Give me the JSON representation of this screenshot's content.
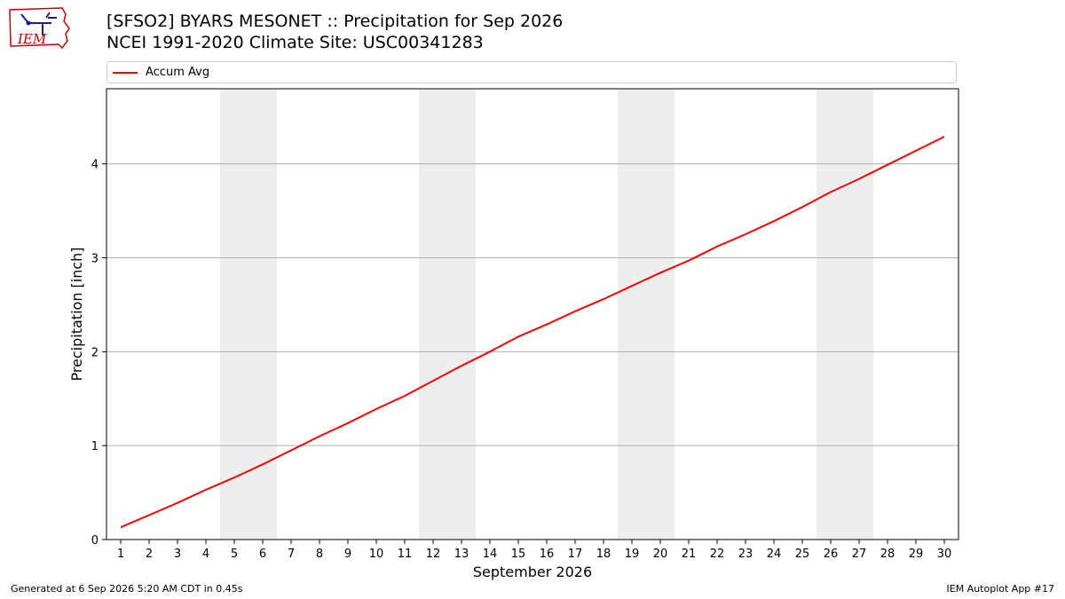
{
  "header": {
    "title_line1": "[SFSO2] BYARS MESONET :: Precipitation for Sep 2026",
    "title_line2": "NCEI 1991-2020 Climate Site: USC00341283"
  },
  "logo": {
    "text": "IEM"
  },
  "footer": {
    "generated": "Generated at 6 Sep 2026 5:20 AM CDT in 0.45s",
    "app": "IEM Autoplot App #17"
  },
  "colors": {
    "line": "#ff0000",
    "weekend_band": "#eeeeee",
    "grid": "#b0b0b0"
  },
  "chart_data": {
    "type": "line",
    "xlabel": "September 2026",
    "ylabel": "Precipitation [inch]",
    "xlim": [
      0.5,
      30.5
    ],
    "ylim": [
      0,
      4.8
    ],
    "x_ticks": [
      1,
      2,
      3,
      4,
      5,
      6,
      7,
      8,
      9,
      10,
      11,
      12,
      13,
      14,
      15,
      16,
      17,
      18,
      19,
      20,
      21,
      22,
      23,
      24,
      25,
      26,
      27,
      28,
      29,
      30
    ],
    "y_ticks": [
      0,
      1,
      2,
      3,
      4
    ],
    "grid": "horizontal",
    "legend_position": "top",
    "shaded_day_ranges": [
      [
        4.5,
        6.5
      ],
      [
        11.5,
        13.5
      ],
      [
        18.5,
        20.5
      ],
      [
        25.5,
        27.5
      ]
    ],
    "series": [
      {
        "name": "Accum Avg",
        "color": "#ff0000",
        "x": [
          1,
          2,
          3,
          4,
          5,
          6,
          7,
          8,
          9,
          10,
          11,
          12,
          13,
          14,
          15,
          16,
          17,
          18,
          19,
          20,
          21,
          22,
          23,
          24,
          25,
          26,
          27,
          28,
          29,
          30
        ],
        "y": [
          0.13,
          0.26,
          0.39,
          0.53,
          0.66,
          0.8,
          0.95,
          1.1,
          1.24,
          1.39,
          1.53,
          1.69,
          1.85,
          2.0,
          2.16,
          2.29,
          2.43,
          2.56,
          2.7,
          2.84,
          2.97,
          3.12,
          3.25,
          3.39,
          3.54,
          3.7,
          3.84,
          3.99,
          4.14,
          4.29
        ]
      }
    ]
  }
}
